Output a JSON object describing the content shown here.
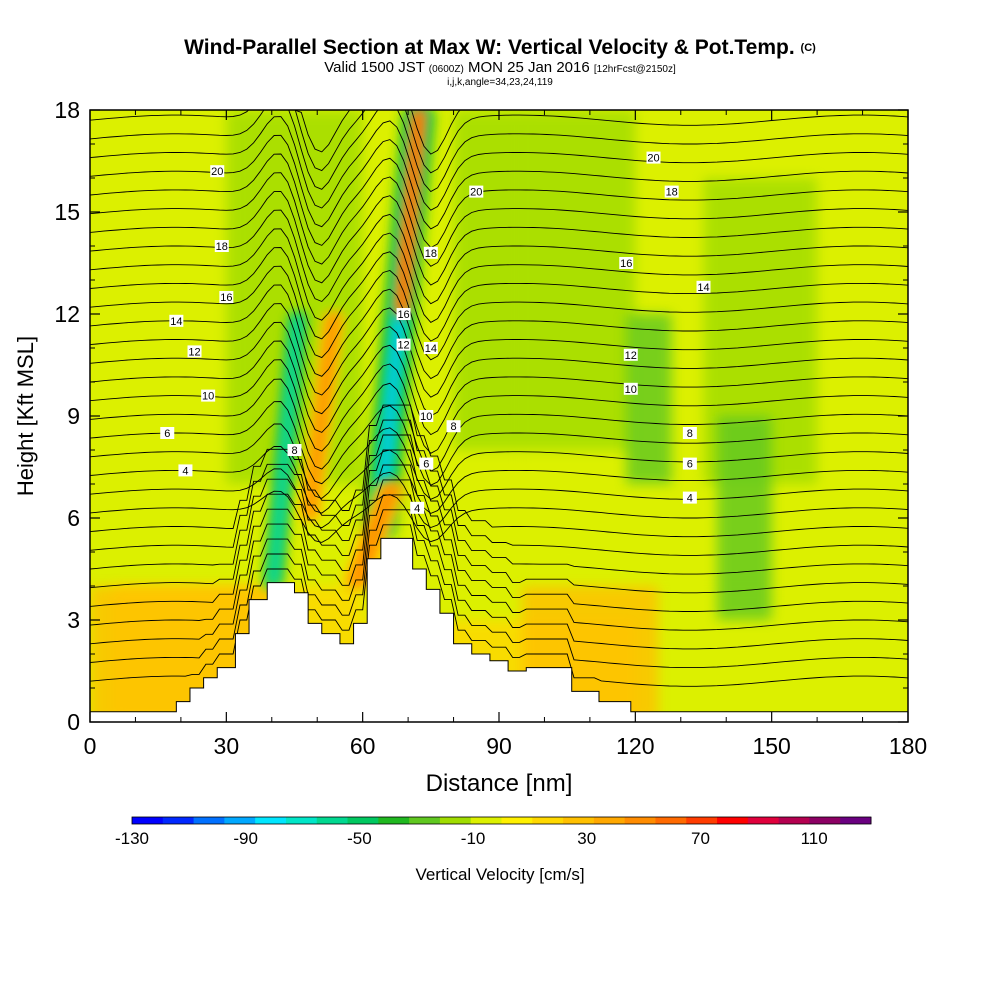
{
  "header": {
    "title": "Wind-Parallel Section at Max W: Vertical Velocity & Pot.Temp.",
    "copyright": "(C)",
    "valid_prefix": "Valid 1500 JST",
    "valid_utc": "(0600Z)",
    "valid_date": "MON 25 Jan 2016",
    "forecast": "[12hrFcst@2150z]",
    "indices": "i,j,k,angle=34,23,24,119"
  },
  "chart_data": {
    "type": "heatmap",
    "xlabel": "Distance [nm]",
    "ylabel": "Height [Kft MSL]",
    "xlim": [
      0,
      180
    ],
    "ylim": [
      0,
      18
    ],
    "x_ticks": [
      "0",
      "30",
      "60",
      "90",
      "120",
      "150",
      "180"
    ],
    "y_ticks": [
      "0",
      "3",
      "6",
      "9",
      "12",
      "15",
      "18"
    ],
    "colorbar": {
      "label": "Vertical Velocity [cm/s]",
      "tick_labels": [
        "-130",
        "-90",
        "-50",
        "-10",
        "30",
        "70",
        "110"
      ],
      "bounds": [
        -130,
        130
      ],
      "colors": [
        "#0000ff",
        "#0028ff",
        "#0070ff",
        "#00a8ff",
        "#00e6ff",
        "#00e6c8",
        "#00d890",
        "#00c860",
        "#20b820",
        "#60c820",
        "#a0dc00",
        "#dcf000",
        "#fff000",
        "#ffd800",
        "#ffc000",
        "#ffa800",
        "#ff8c00",
        "#ff6a00",
        "#ff3c00",
        "#ff0000",
        "#e0003c",
        "#b40050",
        "#8c0064",
        "#6a0080"
      ]
    },
    "velocity_features": [
      {
        "name": "downdraft",
        "x": [
          38,
          48
        ],
        "y": [
          4,
          12
        ],
        "peak": -80
      },
      {
        "name": "updraft",
        "x": [
          46,
          56
        ],
        "y": [
          6,
          12
        ],
        "peak": 60
      },
      {
        "name": "downdraft",
        "x": [
          60,
          76
        ],
        "y": [
          5.5,
          18
        ],
        "peak": -100
      },
      {
        "name": "updraft",
        "x": [
          67,
          74
        ],
        "y": [
          12,
          18
        ],
        "peak": 80
      },
      {
        "name": "updraft",
        "x": [
          55,
          70
        ],
        "y": [
          4,
          7
        ],
        "peak": 60
      }
    ],
    "isentrope_labels": [
      "4",
      "6",
      "8",
      "10",
      "12",
      "14",
      "16",
      "18",
      "20"
    ],
    "terrain": [
      {
        "x": 0,
        "h": 0.3
      },
      {
        "x": 18,
        "h": 0.3
      },
      {
        "x": 19,
        "h": 0.6
      },
      {
        "x": 22,
        "h": 1.0
      },
      {
        "x": 25,
        "h": 1.3
      },
      {
        "x": 28,
        "h": 1.6
      },
      {
        "x": 32,
        "h": 2.6
      },
      {
        "x": 35,
        "h": 3.6
      },
      {
        "x": 39,
        "h": 4.1
      },
      {
        "x": 42,
        "h": 4.1
      },
      {
        "x": 45,
        "h": 3.8
      },
      {
        "x": 48,
        "h": 2.9
      },
      {
        "x": 51,
        "h": 2.6
      },
      {
        "x": 55,
        "h": 2.3
      },
      {
        "x": 58,
        "h": 2.9
      },
      {
        "x": 61,
        "h": 4.8
      },
      {
        "x": 64,
        "h": 5.4
      },
      {
        "x": 70,
        "h": 5.4
      },
      {
        "x": 71,
        "h": 4.5
      },
      {
        "x": 74,
        "h": 3.9
      },
      {
        "x": 77,
        "h": 3.2
      },
      {
        "x": 80,
        "h": 2.3
      },
      {
        "x": 84,
        "h": 2.0
      },
      {
        "x": 88,
        "h": 1.8
      },
      {
        "x": 92,
        "h": 1.5
      },
      {
        "x": 96,
        "h": 1.6
      },
      {
        "x": 100,
        "h": 1.6
      },
      {
        "x": 106,
        "h": 0.9
      },
      {
        "x": 112,
        "h": 0.6
      },
      {
        "x": 119,
        "h": 0.3
      },
      {
        "x": 180,
        "h": 0.3
      }
    ]
  }
}
